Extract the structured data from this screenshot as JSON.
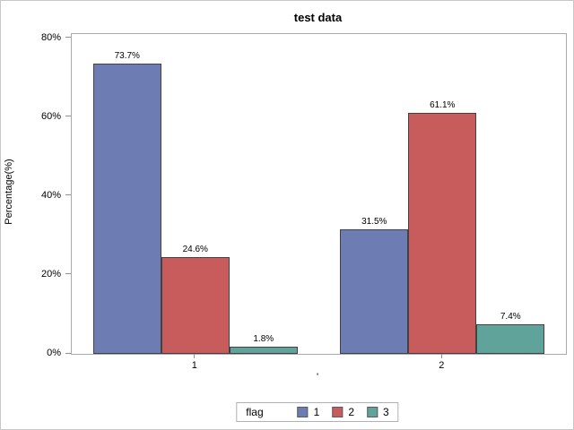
{
  "title": "test data",
  "chart_data": {
    "type": "bar",
    "title": "test data",
    "xlabel": "'",
    "ylabel": "Percentage(%)",
    "categories": [
      "1",
      "2"
    ],
    "series": [
      {
        "name": "1",
        "color": "#6D7DB4",
        "values": [
          73.7,
          31.5
        ],
        "labels": [
          "73.7%",
          "31.5%"
        ]
      },
      {
        "name": "2",
        "color": "#C85C5C",
        "values": [
          24.6,
          61.1
        ],
        "labels": [
          "24.6%",
          "61.1%"
        ]
      },
      {
        "name": "3",
        "color": "#5FA39B",
        "values": [
          1.8,
          7.4
        ],
        "labels": [
          "1.8%",
          "7.4%"
        ]
      }
    ],
    "ylim": [
      0,
      81.1
    ],
    "yticks": [
      {
        "value": 0,
        "label": "0%"
      },
      {
        "value": 20,
        "label": "20%"
      },
      {
        "value": 40,
        "label": "40%"
      },
      {
        "value": 60,
        "label": "60%"
      },
      {
        "value": 80,
        "label": "80%"
      }
    ],
    "grid": false,
    "legend": {
      "title": "flag",
      "position": "bottom",
      "entries": [
        "1",
        "2",
        "3"
      ]
    }
  },
  "colors": {
    "series_blue": "#6D7DB4",
    "series_red": "#C85C5C",
    "series_teal": "#5FA39B",
    "bar_border": "#424242",
    "plot_border": "#a9a9b2",
    "figure_border": "#c7c7cd",
    "tick": "#8f8f98",
    "text": "#000000"
  }
}
